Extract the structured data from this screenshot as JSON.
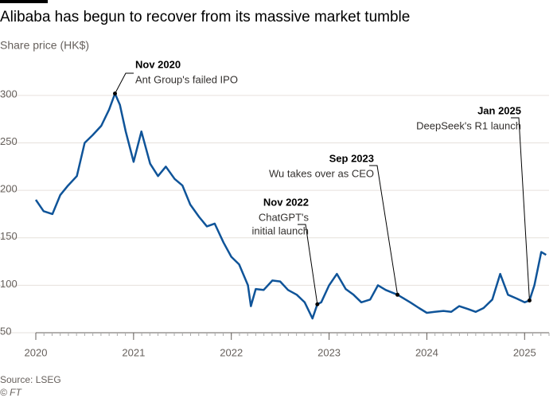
{
  "chart_data": {
    "type": "line",
    "title": "Alibaba has begun to recover from its massive market tumble",
    "subtitle": "Share price (HK$)",
    "source": "Source: LSEG",
    "credit": "© FT",
    "xlim": [
      2020,
      2025.25
    ],
    "xticks": [
      2020,
      2021,
      2022,
      2023,
      2024,
      2025
    ],
    "ylim": [
      50,
      320
    ],
    "yticks": [
      50,
      100,
      150,
      200,
      250,
      300
    ],
    "grid": true,
    "series": [
      {
        "color": "#0f5499",
        "x": [
          2020.0,
          2020.08,
          2020.17,
          2020.25,
          2020.33,
          2020.42,
          2020.5,
          2020.58,
          2020.67,
          2020.75,
          2020.81,
          2020.86,
          2020.92,
          2021.0,
          2021.08,
          2021.17,
          2021.25,
          2021.33,
          2021.42,
          2021.5,
          2021.58,
          2021.67,
          2021.75,
          2021.83,
          2021.92,
          2022.0,
          2022.08,
          2022.17,
          2022.2,
          2022.25,
          2022.33,
          2022.42,
          2022.5,
          2022.58,
          2022.67,
          2022.75,
          2022.83,
          2022.88,
          2022.92,
          2023.0,
          2023.08,
          2023.17,
          2023.25,
          2023.33,
          2023.42,
          2023.5,
          2023.58,
          2023.7,
          2023.75,
          2023.83,
          2023.92,
          2024.0,
          2024.08,
          2024.17,
          2024.25,
          2024.33,
          2024.42,
          2024.5,
          2024.58,
          2024.67,
          2024.75,
          2024.83,
          2024.92,
          2025.0,
          2025.05,
          2025.1,
          2025.17,
          2025.22
        ],
        "values": [
          190,
          178,
          175,
          195,
          205,
          215,
          250,
          258,
          268,
          285,
          302,
          290,
          262,
          230,
          262,
          228,
          215,
          225,
          212,
          205,
          185,
          172,
          162,
          165,
          145,
          130,
          122,
          100,
          78,
          96,
          95,
          105,
          104,
          95,
          90,
          82,
          65,
          80,
          82,
          100,
          112,
          96,
          90,
          82,
          85,
          100,
          95,
          90,
          87,
          82,
          76,
          71,
          72,
          73,
          72,
          78,
          75,
          72,
          76,
          85,
          112,
          90,
          86,
          82,
          84,
          100,
          135,
          132
        ]
      }
    ],
    "annotations": [
      {
        "date": "Nov 2020",
        "lines": [
          "Ant Group's failed IPO"
        ],
        "x": 2020.81,
        "y": 302
      },
      {
        "date": "Nov 2022",
        "lines": [
          "ChatGPT's",
          "initial launch"
        ],
        "x": 2022.88,
        "y": 80
      },
      {
        "date": "Sep 2023",
        "lines": [
          "Wu takes over as CEO"
        ],
        "x": 2023.7,
        "y": 90
      },
      {
        "date": "Jan 2025",
        "lines": [
          "DeepSeek's R1 launch"
        ],
        "x": 2025.05,
        "y": 84
      }
    ]
  }
}
